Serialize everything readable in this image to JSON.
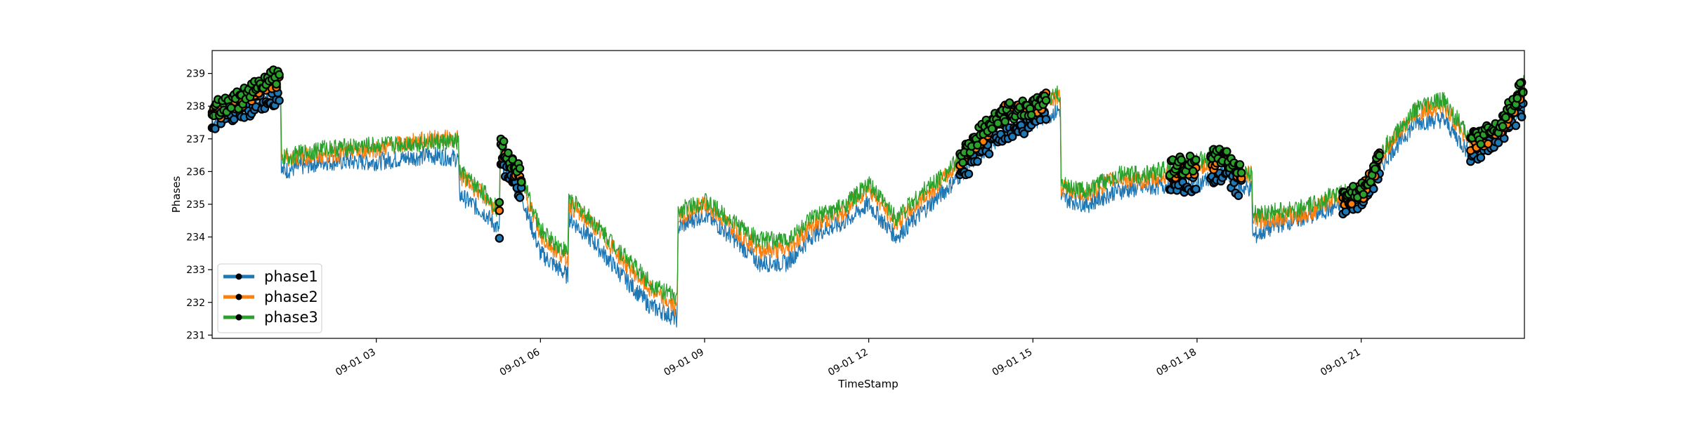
{
  "chart_data": {
    "type": "line",
    "title": "",
    "xlabel": "TimeStamp",
    "ylabel": "Phases",
    "xlim": [
      "2021-09-01 00:00",
      "2021-09-01 23:59"
    ],
    "ylim": [
      230.9,
      239.7
    ],
    "yticks": [
      231,
      232,
      233,
      234,
      235,
      236,
      237,
      238,
      239
    ],
    "xticks": [
      "2021-09-01 03:00",
      "2021-09-01 06:00",
      "2021-09-01 09:00",
      "2021-09-01 12:00",
      "2021-09-01 15:00",
      "2021-09-01 18:00",
      "2021-09-01 21:00"
    ],
    "xtick_labels": [
      "09-01 03",
      "09-01 06",
      "09-01 09",
      "09-01 12",
      "09-01 15",
      "09-01 18",
      "09-01 21"
    ],
    "grid": false,
    "legend": "lower-left",
    "x": [
      "00:00",
      "00:30",
      "01:00",
      "01:15",
      "01:16",
      "02:00",
      "03:00",
      "04:00",
      "04:30",
      "04:31",
      "05:00",
      "05:15",
      "05:16",
      "05:40",
      "06:00",
      "06:30",
      "06:31",
      "07:00",
      "07:30",
      "08:00",
      "08:30",
      "08:31",
      "09:00",
      "09:30",
      "10:00",
      "10:30",
      "11:00",
      "11:30",
      "12:00",
      "12:30",
      "13:00",
      "13:30",
      "14:00",
      "14:30",
      "15:00",
      "15:30",
      "15:31",
      "16:00",
      "16:30",
      "17:00",
      "17:30",
      "18:00",
      "18:15",
      "18:30",
      "18:45",
      "19:00",
      "19:01",
      "19:30",
      "20:00",
      "20:30",
      "21:00",
      "21:30",
      "22:00",
      "22:30",
      "23:00",
      "23:30",
      "23:59"
    ],
    "series": [
      {
        "name": "phase1",
        "color": "#1f77b4",
        "values": [
          237.5,
          237.8,
          238.2,
          238.3,
          236.0,
          236.3,
          236.3,
          236.5,
          236.4,
          235.3,
          234.7,
          234.2,
          236.3,
          235.2,
          233.5,
          232.8,
          234.6,
          233.8,
          232.8,
          231.9,
          231.5,
          234.3,
          234.7,
          234.0,
          233.2,
          233.2,
          234.1,
          234.4,
          235.0,
          234.0,
          234.8,
          235.6,
          236.5,
          237.2,
          237.5,
          237.9,
          235.2,
          235.0,
          235.4,
          235.5,
          235.6,
          235.6,
          235.8,
          236.0,
          235.5,
          235.5,
          234.0,
          234.4,
          234.6,
          234.9,
          235.1,
          236.5,
          237.5,
          237.6,
          236.5,
          237.0,
          238.0
        ]
      },
      {
        "name": "phase2",
        "color": "#ff7f0e",
        "values": [
          237.8,
          238.1,
          238.7,
          238.8,
          236.4,
          236.5,
          236.7,
          237.0,
          237.0,
          235.9,
          235.2,
          234.7,
          236.7,
          235.7,
          234.0,
          233.3,
          235.0,
          234.3,
          233.3,
          232.4,
          231.8,
          234.6,
          235.0,
          234.3,
          233.6,
          233.6,
          234.4,
          234.7,
          235.5,
          234.4,
          235.2,
          236.0,
          237.0,
          237.8,
          238.0,
          238.3,
          235.5,
          235.3,
          235.8,
          235.7,
          235.9,
          236.1,
          236.3,
          236.4,
          235.9,
          235.9,
          234.5,
          234.6,
          234.7,
          235.2,
          235.3,
          236.8,
          237.8,
          238.0,
          236.9,
          237.2,
          238.6
        ]
      },
      {
        "name": "phase3",
        "color": "#2ca02c",
        "values": [
          237.9,
          238.2,
          238.8,
          238.9,
          236.4,
          236.7,
          236.8,
          236.9,
          236.9,
          236.0,
          235.3,
          234.8,
          236.9,
          235.8,
          234.2,
          233.5,
          235.2,
          234.4,
          233.5,
          232.6,
          232.1,
          234.8,
          235.1,
          234.5,
          233.9,
          233.9,
          234.6,
          234.9,
          235.6,
          234.6,
          235.4,
          236.1,
          237.1,
          237.8,
          238.0,
          238.4,
          235.6,
          235.4,
          235.9,
          235.9,
          236.1,
          236.3,
          236.5,
          236.5,
          236.0,
          236.0,
          234.7,
          234.8,
          234.9,
          235.3,
          235.4,
          236.9,
          237.9,
          238.2,
          237.0,
          237.3,
          238.7
        ]
      }
    ],
    "marker_segments": [
      [
        "00:00",
        "01:15"
      ],
      [
        "05:15",
        "05:40"
      ],
      [
        "13:40",
        "15:15"
      ],
      [
        "17:30",
        "18:00"
      ],
      [
        "18:15",
        "18:50"
      ],
      [
        "20:40",
        "21:20"
      ],
      [
        "23:00",
        "23:59"
      ]
    ]
  }
}
